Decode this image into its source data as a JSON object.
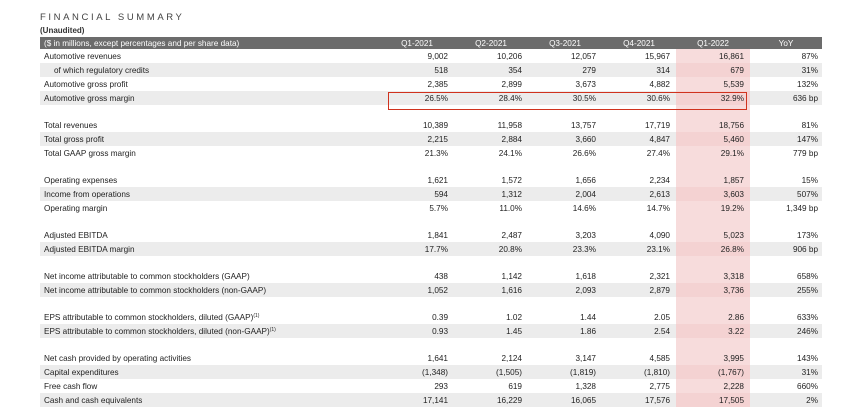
{
  "title": "FINANCIAL SUMMARY",
  "subtitle": "(Unaudited)",
  "columns": [
    "($ in millions, except percentages and per share data)",
    "Q1-2021",
    "Q2-2021",
    "Q3-2021",
    "Q4-2021",
    "Q1-2022",
    "YoY"
  ],
  "groups": [
    [
      {
        "label": "Automotive revenues",
        "values": [
          "9,002",
          "10,206",
          "12,057",
          "15,967",
          "16,861"
        ],
        "yoy": "87%"
      },
      {
        "label": "of which regulatory credits",
        "values": [
          "518",
          "354",
          "279",
          "314",
          "679"
        ],
        "yoy": "31%"
      },
      {
        "label": "Automotive gross profit",
        "values": [
          "2,385",
          "2,899",
          "3,673",
          "4,882",
          "5,539"
        ],
        "yoy": "132%"
      },
      {
        "label": "Automotive gross margin",
        "values": [
          "26.5%",
          "28.4%",
          "30.5%",
          "30.6%",
          "32.9%"
        ],
        "yoy": "636 bp"
      }
    ],
    [
      {
        "label": "Total revenues",
        "values": [
          "10,389",
          "11,958",
          "13,757",
          "17,719",
          "18,756"
        ],
        "yoy": "81%"
      },
      {
        "label": "Total gross profit",
        "values": [
          "2,215",
          "2,884",
          "3,660",
          "4,847",
          "5,460"
        ],
        "yoy": "147%"
      },
      {
        "label": "Total GAAP gross margin",
        "values": [
          "21.3%",
          "24.1%",
          "26.6%",
          "27.4%",
          "29.1%"
        ],
        "yoy": "779 bp"
      }
    ],
    [
      {
        "label": "Operating expenses",
        "values": [
          "1,621",
          "1,572",
          "1,656",
          "2,234",
          "1,857"
        ],
        "yoy": "15%"
      },
      {
        "label": "Income from operations",
        "values": [
          "594",
          "1,312",
          "2,004",
          "2,613",
          "3,603"
        ],
        "yoy": "507%"
      },
      {
        "label": "Operating margin",
        "values": [
          "5.7%",
          "11.0%",
          "14.6%",
          "14.7%",
          "19.2%"
        ],
        "yoy": "1,349 bp"
      }
    ],
    [
      {
        "label": "Adjusted EBITDA",
        "values": [
          "1,841",
          "2,487",
          "3,203",
          "4,090",
          "5,023"
        ],
        "yoy": "173%"
      },
      {
        "label": "Adjusted EBITDA margin",
        "values": [
          "17.7%",
          "20.8%",
          "23.3%",
          "23.1%",
          "26.8%"
        ],
        "yoy": "906 bp"
      }
    ],
    [
      {
        "label": "Net income attributable to common stockholders (GAAP)",
        "values": [
          "438",
          "1,142",
          "1,618",
          "2,321",
          "3,318"
        ],
        "yoy": "658%"
      },
      {
        "label": "Net income attributable to common stockholders (non-GAAP)",
        "values": [
          "1,052",
          "1,616",
          "2,093",
          "2,879",
          "3,736"
        ],
        "yoy": "255%"
      }
    ],
    [
      {
        "label": "EPS attributable to common stockholders, diluted (GAAP)",
        "sup": "(1)",
        "values": [
          "0.39",
          "1.02",
          "1.44",
          "2.05",
          "2.86"
        ],
        "yoy": "633%"
      },
      {
        "label": "EPS attributable to common stockholders, diluted (non-GAAP)",
        "sup": "(1)",
        "values": [
          "0.93",
          "1.45",
          "1.86",
          "2.54",
          "3.22"
        ],
        "yoy": "246%"
      }
    ],
    [
      {
        "label": "Net cash provided by operating activities",
        "values": [
          "1,641",
          "2,124",
          "3,147",
          "4,585",
          "3,995"
        ],
        "yoy": "143%"
      },
      {
        "label": "Capital expenditures",
        "values": [
          "(1,348)",
          "(1,505)",
          "(1,819)",
          "(1,810)",
          "(1,767)"
        ],
        "yoy": "31%"
      },
      {
        "label": "Free cash flow",
        "values": [
          "293",
          "619",
          "1,328",
          "2,775",
          "2,228"
        ],
        "yoy": "660%"
      },
      {
        "label": "Cash and cash equivalents",
        "values": [
          "17,141",
          "16,229",
          "16,065",
          "17,576",
          "17,505"
        ],
        "yoy": "2%"
      }
    ]
  ],
  "indented_rows": [
    "of which regulatory credits"
  ],
  "highlight": {
    "group": 0,
    "row": 3,
    "color": "#d0321e"
  },
  "colors": {
    "header_bg": "#6c6c6c",
    "band_bg": "#ececec",
    "latest_quarter_bg": "#f7dcdc"
  }
}
